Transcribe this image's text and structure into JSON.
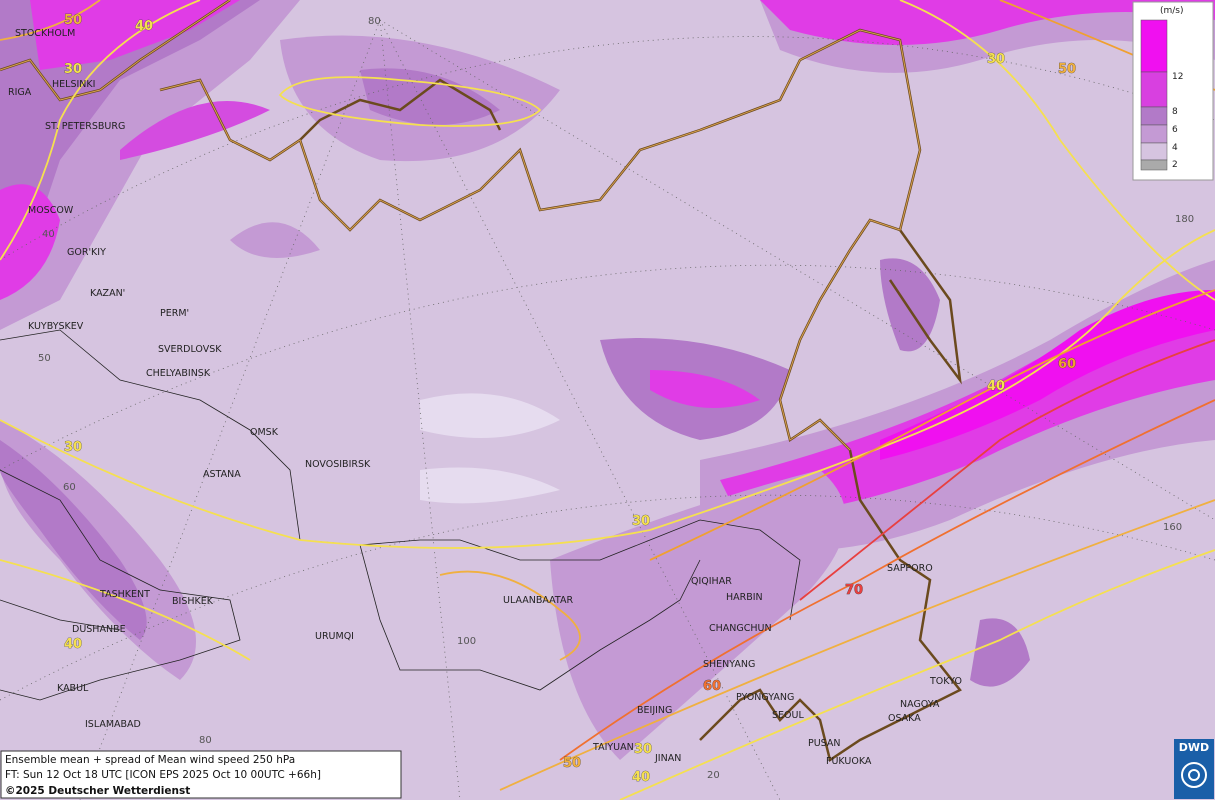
{
  "legend": {
    "unit": "(m/s)",
    "ticks": [
      12,
      8,
      6,
      4,
      2
    ]
  },
  "cities": [
    "STOCKHOLM",
    "HELSINKI",
    "RIGA",
    "ST. PETERSBURG",
    "MOSCOW",
    "GOR'KIY",
    "KAZAN'",
    "PERM'",
    "KUYBYSKEV",
    "SVERDLOVSK",
    "CHELYABINSK",
    "OMSK",
    "ASTANA",
    "NOVOSIBIRSK",
    "TASHKENT",
    "BISHKEK",
    "DUSHANBE",
    "URUMQI",
    "KABUL",
    "ISLAMABAD",
    "ULAANBAATAR",
    "QIQIHAR",
    "HARBIN",
    "CHANGCHUN",
    "SHENYANG",
    "BEIJING",
    "PYONGYANG",
    "SEOUL",
    "TAIYUAN",
    "JINAN",
    "PUSAN",
    "FUKUOKA",
    "SAPPORO",
    "TOKYO",
    "NAGOYA",
    "OSAKA"
  ],
  "contour_labels": [
    50,
    40,
    30,
    30,
    50,
    40,
    60,
    30,
    30,
    70,
    60,
    40,
    50,
    30,
    40
  ],
  "graticule_labels": [
    80,
    180,
    160,
    50,
    40,
    60,
    100,
    80,
    20
  ],
  "footer": {
    "line1": "Ensemble mean + spread of Mean wind speed 250 hPa",
    "line2": "FT: Sun 12 Oct 18 UTC [ICON EPS 2025 Oct 10 00UTC +66h]",
    "line3": "©2025 Deutscher Wetterdienst"
  },
  "logo": "DWD"
}
